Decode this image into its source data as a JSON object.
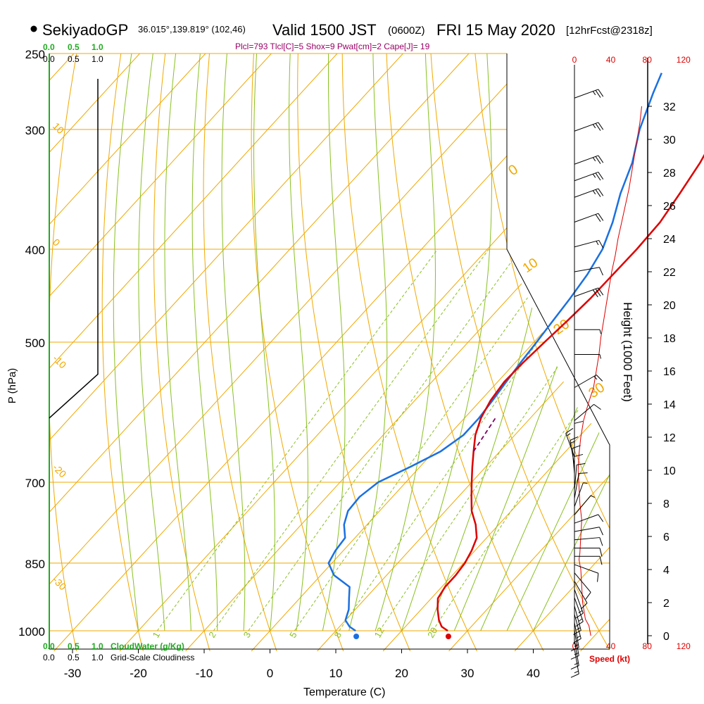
{
  "header": {
    "station": "SekiyadoGP",
    "coords": "36.015°,139.819° (102,46)",
    "valid": "Valid 1500 JST",
    "zulu": "(0600Z)",
    "date": "FRI 15 May 2020",
    "forecast": "[12hrFcst@2318z]",
    "indices": "Plcl=793 Tlcl[C]=5 Shox=9 Pwat[cm]=2 Cape[J]= 19"
  },
  "colors": {
    "isotherm": "#f0a800",
    "adiabat": "#88c020",
    "mixing": "#88c020",
    "temperature": "#dd0000",
    "dewpoint": "#1a70e0",
    "parcel": "#800060",
    "cloud": "#22aa22",
    "speed": "#dd0000",
    "indices": "#990066"
  },
  "chart_data": {
    "type": "skew-t",
    "xlabel": "Temperature (C)",
    "ylabel": "P (hPa)",
    "x_ticks": [
      "-30",
      "-20",
      "-10",
      "0",
      "10",
      "20",
      "30",
      "40"
    ],
    "x_tick_values": [
      -30,
      -20,
      -10,
      0,
      10,
      20,
      30,
      40
    ],
    "p_ticks": [
      "250",
      "300",
      "400",
      "500",
      "700",
      "850",
      "1000"
    ],
    "p_tick_values": [
      250,
      300,
      400,
      500,
      700,
      850,
      1000
    ],
    "isotherm_labels": [
      {
        "text": "10",
        "t": 10
      },
      {
        "text": "0",
        "t": 0
      },
      {
        "text": "-10",
        "t": -10
      },
      {
        "text": "-20",
        "t": -20
      },
      {
        "text": "-30",
        "t": -30
      }
    ],
    "isotherm_labels_right": [
      {
        "text": "0",
        "t": 0
      },
      {
        "text": "10",
        "t": 10
      },
      {
        "text": "20",
        "t": 20
      },
      {
        "text": "30",
        "t": 30
      }
    ],
    "mixing_labels": [
      "1",
      "2",
      "3",
      "5",
      "8",
      "12",
      "20"
    ],
    "mixing_ratios": [
      1,
      2,
      3,
      5,
      8,
      12,
      20
    ],
    "temperature": {
      "p": [
        1000,
        990,
        975,
        950,
        925,
        900,
        875,
        850,
        825,
        800,
        775,
        750,
        725,
        700,
        675,
        650,
        625,
        600,
        575,
        550,
        525,
        500,
        475,
        450,
        425,
        400,
        375,
        350,
        325,
        300,
        275,
        262
      ],
      "t": [
        27,
        25.5,
        24.2,
        22.5,
        21,
        20.5,
        20.5,
        20.2,
        19.5,
        18.5,
        16.5,
        14,
        12,
        10,
        8,
        6,
        4,
        2.5,
        1.5,
        1,
        1.2,
        1.6,
        2.1,
        2.5,
        2.6,
        2.7,
        2.5,
        1.5,
        0.3,
        -1.5,
        -4,
        -5.5
      ]
    },
    "dewpoint": {
      "p": [
        1000,
        990,
        975,
        950,
        925,
        900,
        875,
        850,
        825,
        800,
        775,
        750,
        725,
        700,
        675,
        650,
        625,
        600,
        575,
        550,
        525,
        500,
        475,
        450,
        425,
        400,
        375,
        350,
        325,
        300,
        275,
        262
      ],
      "t": [
        13,
        11.5,
        10,
        9,
        7.5,
        6,
        2,
        -0.5,
        -1.2,
        -1.5,
        -3.5,
        -4.8,
        -5,
        -4.2,
        -1.5,
        1,
        2.2,
        2.2,
        1.8,
        1.3,
        0.8,
        0.4,
        -0.1,
        -0.6,
        -1.3,
        -2.5,
        -4.7,
        -7.5,
        -10,
        -13.5,
        -16.5,
        -18
      ]
    },
    "surface": {
      "t": 27,
      "td": 13
    },
    "parcel": {
      "p": [
        650,
        600
      ],
      "t": [
        6,
        4.7
      ]
    },
    "cloud_axis_ticks": [
      "0.0",
      "0.5",
      "1.0"
    ],
    "cloudiness": [
      {
        "p": 250,
        "v": 0.75
      },
      {
        "p": 540,
        "v": 0.75
      },
      {
        "p": 540,
        "v": 0.75
      },
      {
        "p": 640,
        "v": 0.0
      }
    ],
    "cloud_water_label": "CloudWater (g/Kg)",
    "cloudiness_label": "Grid-Scale Cloudiness",
    "height_label": "Height (1000 Feet)",
    "height_ticks": [
      "0",
      "2",
      "4",
      "6",
      "8",
      "10",
      "12",
      "14",
      "16",
      "18",
      "20",
      "22",
      "24",
      "26",
      "28",
      "30",
      "32"
    ],
    "height_tick_values": [
      0,
      2,
      4,
      6,
      8,
      10,
      12,
      14,
      16,
      18,
      20,
      22,
      24,
      26,
      28,
      30,
      32
    ],
    "speed_label": "Speed (kt)",
    "speed_ticks": [
      "0",
      "40",
      "80",
      "120"
    ],
    "speed_tick_values": [
      0,
      40,
      80,
      120
    ],
    "wind_speed": {
      "h": [
        0,
        0.6,
        1,
        2,
        3,
        4,
        4.6,
        5,
        6,
        7,
        8,
        9,
        10,
        11,
        12,
        13,
        14,
        15,
        16,
        17,
        18,
        19,
        20,
        21,
        22,
        23,
        24,
        25,
        26,
        27,
        28,
        29,
        30,
        31,
        32
      ],
      "kt": [
        18,
        16,
        12,
        9,
        8,
        7,
        5,
        6,
        7,
        8,
        6,
        5,
        4,
        5,
        7,
        10,
        15,
        21,
        24,
        27,
        29,
        32,
        35,
        38,
        41,
        45,
        48,
        52,
        56,
        60,
        63,
        66,
        69,
        72,
        74
      ]
    },
    "winds": [
      {
        "h": 32.5,
        "kt": 25,
        "dir": 250
      },
      {
        "h": 30.5,
        "kt": 25,
        "dir": 250
      },
      {
        "h": 28.5,
        "kt": 25,
        "dir": 250
      },
      {
        "h": 27.5,
        "kt": 25,
        "dir": 250
      },
      {
        "h": 26.5,
        "kt": 25,
        "dir": 250
      },
      {
        "h": 25,
        "kt": 20,
        "dir": 250
      },
      {
        "h": 23.5,
        "kt": 15,
        "dir": 255
      },
      {
        "h": 22,
        "kt": 10,
        "dir": 260
      },
      {
        "h": 20.5,
        "kt": 30,
        "dir": 250
      },
      {
        "h": 18.5,
        "kt": 5,
        "dir": 270
      },
      {
        "h": 17,
        "kt": 5,
        "dir": 270
      },
      {
        "h": 15,
        "kt": 15,
        "dir": 240
      },
      {
        "h": 13,
        "kt": 10,
        "dir": 230
      },
      {
        "h": 11.3,
        "kt": 10,
        "dir": 180
      },
      {
        "h": 10.8,
        "kt": 15,
        "dir": 160
      },
      {
        "h": 10.3,
        "kt": 15,
        "dir": 170
      },
      {
        "h": 9.8,
        "kt": 10,
        "dir": 175
      },
      {
        "h": 9.3,
        "kt": 10,
        "dir": 180
      },
      {
        "h": 8.8,
        "kt": 10,
        "dir": 185
      },
      {
        "h": 8.3,
        "kt": 10,
        "dir": 190
      },
      {
        "h": 7.8,
        "kt": 5,
        "dir": 200
      },
      {
        "h": 7.3,
        "kt": 5,
        "dir": 220
      },
      {
        "h": 6.8,
        "kt": 10,
        "dir": 250
      },
      {
        "h": 6.3,
        "kt": 10,
        "dir": 260
      },
      {
        "h": 5.8,
        "kt": 10,
        "dir": 265
      },
      {
        "h": 5.3,
        "kt": 10,
        "dir": 270
      },
      {
        "h": 4.8,
        "kt": 10,
        "dir": 270
      },
      {
        "h": 4.3,
        "kt": 10,
        "dir": 290
      },
      {
        "h": 3.8,
        "kt": 10,
        "dir": 320
      },
      {
        "h": 3.3,
        "kt": 10,
        "dir": 330
      },
      {
        "h": 2.8,
        "kt": 15,
        "dir": 340
      },
      {
        "h": 2.3,
        "kt": 15,
        "dir": 340
      },
      {
        "h": 1.8,
        "kt": 15,
        "dir": 345
      },
      {
        "h": 1.3,
        "kt": 15,
        "dir": 345
      },
      {
        "h": 0.8,
        "kt": 15,
        "dir": 350
      },
      {
        "h": 0.3,
        "kt": 15,
        "dir": 350
      },
      {
        "h": -0.3,
        "kt": 15,
        "dir": 350
      },
      {
        "h": -0.8,
        "kt": 15,
        "dir": 350
      }
    ]
  }
}
